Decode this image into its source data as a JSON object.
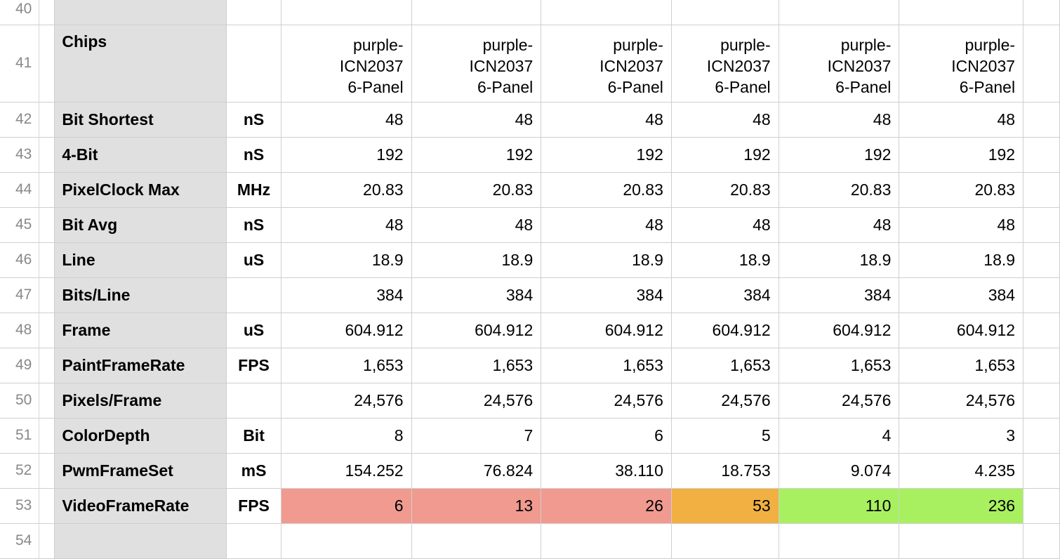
{
  "sheet": {
    "colors": {
      "header_fill": "#e0e0e0",
      "red_fill": "#f09a90",
      "orange_fill": "#f1b041",
      "green_fill": "#a8f060"
    },
    "row_numbers": [
      "40",
      "41",
      "42",
      "43",
      "44",
      "45",
      "46",
      "47",
      "48",
      "49",
      "50",
      "51",
      "52",
      "53",
      "54"
    ],
    "chips_label": "Chips",
    "chip_header": [
      "purple-\nICN2037\n6-Panel",
      "purple-\nICN2037\n6-Panel",
      "purple-\nICN2037\n6-Panel",
      "purple-\nICN2037\n6-Panel",
      "purple-\nICN2037\n6-Panel",
      "purple-\nICN2037\n6-Panel"
    ],
    "rows": [
      {
        "label": "Bit Shortest",
        "unit": "nS",
        "values": [
          "48",
          "48",
          "48",
          "48",
          "48",
          "48"
        ]
      },
      {
        "label": "4-Bit",
        "unit": "nS",
        "values": [
          "192",
          "192",
          "192",
          "192",
          "192",
          "192"
        ]
      },
      {
        "label": "PixelClock Max",
        "unit": "MHz",
        "values": [
          "20.83",
          "20.83",
          "20.83",
          "20.83",
          "20.83",
          "20.83"
        ]
      },
      {
        "label": "Bit Avg",
        "unit": "nS",
        "values": [
          "48",
          "48",
          "48",
          "48",
          "48",
          "48"
        ]
      },
      {
        "label": "Line",
        "unit": "uS",
        "values": [
          "18.9",
          "18.9",
          "18.9",
          "18.9",
          "18.9",
          "18.9"
        ]
      },
      {
        "label": "Bits/Line",
        "unit": "",
        "values": [
          "384",
          "384",
          "384",
          "384",
          "384",
          "384"
        ]
      },
      {
        "label": "Frame",
        "unit": "uS",
        "values": [
          "604.912",
          "604.912",
          "604.912",
          "604.912",
          "604.912",
          "604.912"
        ]
      },
      {
        "label": "PaintFrameRate",
        "unit": "FPS",
        "values": [
          "1,653",
          "1,653",
          "1,653",
          "1,653",
          "1,653",
          "1,653"
        ]
      },
      {
        "label": "Pixels/Frame",
        "unit": "",
        "values": [
          "24,576",
          "24,576",
          "24,576",
          "24,576",
          "24,576",
          "24,576"
        ]
      },
      {
        "label": "ColorDepth",
        "unit": "Bit",
        "values": [
          "8",
          "7",
          "6",
          "5",
          "4",
          "3"
        ]
      },
      {
        "label": "PwmFrameSet",
        "unit": "mS",
        "values": [
          "154.252",
          "76.824",
          "38.110",
          "18.753",
          "9.074",
          "4.235"
        ]
      },
      {
        "label": "VideoFrameRate",
        "unit": "FPS",
        "values": [
          "6",
          "13",
          "26",
          "53",
          "110",
          "236"
        ],
        "fills": [
          "#f09a90",
          "#f09a90",
          "#f09a90",
          "#f1b041",
          "#a8f060",
          "#a8f060"
        ]
      }
    ]
  }
}
